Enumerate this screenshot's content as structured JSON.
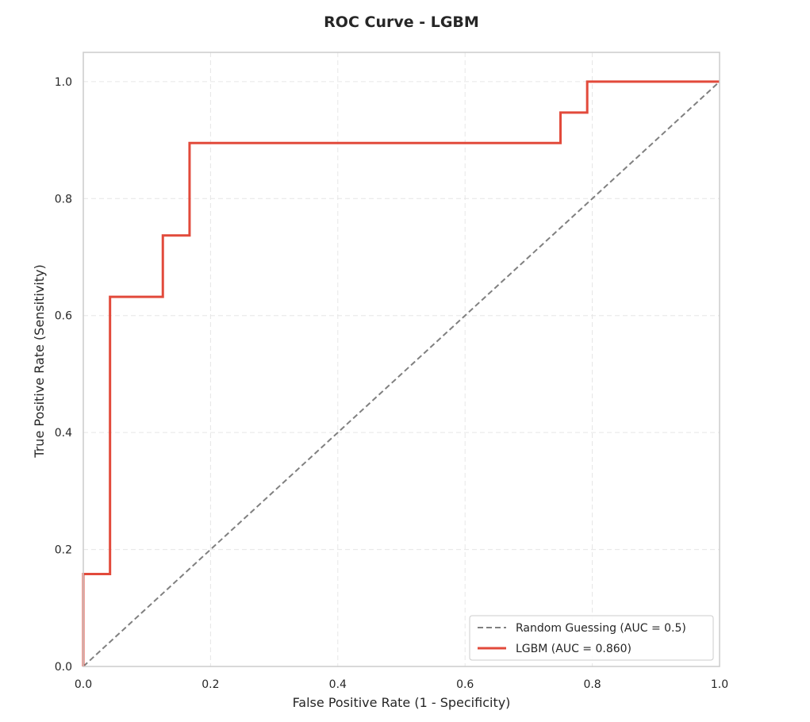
{
  "chart_data": {
    "type": "line",
    "title": "ROC Curve - LGBM",
    "xlabel": "False Positive Rate (1 - Specificity)",
    "ylabel": "True Positive Rate (Sensitivity)",
    "xlim": [
      0.0,
      1.0
    ],
    "ylim": [
      0.0,
      1.05
    ],
    "xticks": [
      0.0,
      0.2,
      0.4,
      0.6,
      0.8,
      1.0
    ],
    "yticks": [
      0.0,
      0.2,
      0.4,
      0.6,
      0.8,
      1.0
    ],
    "xtick_labels": [
      "0.0",
      "0.2",
      "0.4",
      "0.6",
      "0.8",
      "1.0"
    ],
    "ytick_labels": [
      "0.0",
      "0.2",
      "0.4",
      "0.6",
      "0.8",
      "1.0"
    ],
    "grid": true,
    "legend_position": "bottom-right",
    "series": [
      {
        "name": "Random Guessing (AUC = 0.5)",
        "style": "dashed",
        "color": "#808080",
        "x": [
          0.0,
          1.0
        ],
        "y": [
          0.0,
          1.0
        ]
      },
      {
        "name": "LGBM (AUC = 0.860)",
        "style": "solid",
        "color": "#e24a3b",
        "x": [
          0.0,
          0.0,
          0.042,
          0.042,
          0.125,
          0.125,
          0.167,
          0.167,
          0.75,
          0.75,
          0.792,
          0.792,
          1.0
        ],
        "y": [
          0.0,
          0.158,
          0.158,
          0.632,
          0.632,
          0.737,
          0.737,
          0.895,
          0.895,
          0.947,
          0.947,
          1.0,
          1.0
        ]
      }
    ]
  }
}
